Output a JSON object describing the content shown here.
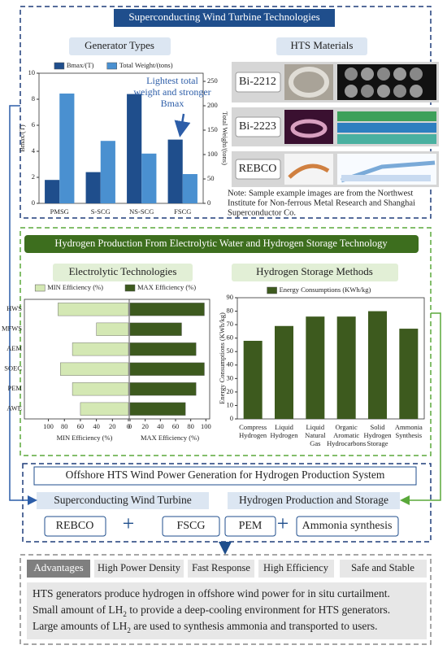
{
  "title": "Superconducting Wind Turbine Technologies",
  "generator_label": "Generator Types",
  "hts_label": "HTS Materials",
  "hts_materials": [
    "Bi-2212",
    "Bi-2223",
    "REBCO"
  ],
  "hts_note": [
    "Note: Sample example images are from the Northwest",
    "Institute for  Non-ferrous Metal Research and Shanghai",
    "Superconductor Co."
  ],
  "section2_title": "Hydrogen Production From Electrolytic Water and Hydrogen Storage Technology",
  "electrolytic_label": "Electrolytic Technologies",
  "storage_label": "Hydrogen Storage Methods",
  "chart_data": [
    {
      "type": "bar",
      "categories": [
        "PMSG",
        "S-SCG",
        "NS-SCG",
        "FSCG"
      ],
      "series": [
        {
          "name": "Bmax/(T)",
          "color": "#1f4e8c",
          "values": [
            1.8,
            2.4,
            8.4,
            4.9
          ]
        },
        {
          "name": "Total Weight/(tons)",
          "color": "#4a90d0",
          "values": [
            225,
            128,
            102,
            60
          ],
          "axis": "y2"
        }
      ],
      "ylim": [
        0,
        10
      ],
      "yticks": [
        0,
        2,
        4,
        6,
        8,
        10
      ],
      "y2lim": [
        0,
        266.7
      ],
      "y2ticks": [
        0,
        50,
        100,
        150,
        200,
        250
      ],
      "ylabel": "Bmax/(T)",
      "y2label": "Total Weight/(tons)",
      "annotation": [
        "Lightest total",
        "weight and stronger",
        "Bmax"
      ],
      "annotation_color": "#2c5da8"
    },
    {
      "type": "diverging_bar",
      "categories": [
        "HWS",
        "MFWS",
        "AEM",
        "SOEC",
        "PEM",
        "AWE"
      ],
      "series": [
        {
          "name": "MIN Efficiency (%)",
          "color": "#d4e8b4",
          "values": [
            88,
            40,
            70,
            85,
            70,
            60
          ],
          "xlim": [
            0,
            130
          ],
          "xticks": [
            0,
            20,
            40,
            60,
            80,
            100
          ],
          "xlabel": "MIN Efficiency (%)",
          "side": "left"
        },
        {
          "name": "MAX Efficiency (%)",
          "color": "#3d5a1e",
          "values": [
            98,
            68,
            87,
            98,
            87,
            73
          ],
          "xlim": [
            0,
            105
          ],
          "xticks": [
            0,
            20,
            40,
            60,
            80,
            100
          ],
          "xlabel": "MAX Efficiency (%)",
          "side": "right"
        }
      ]
    },
    {
      "type": "bar",
      "categories": [
        "Compress Hydrogen",
        "Liquid Hydrogen",
        "Liquid Natural Gas",
        "Organic Aromatic Hydrocarbons",
        "Solid Hydrogen Storage",
        "Ammonia Synthesis"
      ],
      "series": [
        {
          "name": "Energy Consumptions (KWh/kg)",
          "color": "#3d5a1e",
          "values": [
            58,
            69,
            76,
            76,
            80,
            67
          ]
        }
      ],
      "ylim": [
        0,
        90
      ],
      "yticks": [
        0,
        10,
        20,
        30,
        40,
        50,
        60,
        70,
        80,
        90
      ],
      "ylabel": "Energy Consumptions (KWh/kg)"
    }
  ],
  "system": {
    "title": "Offshore HTS Wind Power Generation for Hydrogen Production System",
    "left_label": "Superconducting Wind Turbine",
    "right_label": "Hydrogen Production and Storage",
    "items": [
      "REBCO",
      "+",
      "FSCG",
      "PEM",
      "+",
      "Ammonia synthesis"
    ]
  },
  "advantages": {
    "label": "Advantages",
    "items": [
      "High Power Density",
      "Fast Response",
      "High Efficiency",
      "Safe and Stable"
    ],
    "text": [
      [
        "HTS generators produce hydrogen in offshore wind power for in situ curtailment."
      ],
      [
        "Small amount of LH",
        "2",
        " to provide a deep-cooling environment for HTS generators."
      ],
      [
        "Large amounts of LH",
        "2",
        " are used to synthesis ammonia and transported to users."
      ]
    ]
  }
}
